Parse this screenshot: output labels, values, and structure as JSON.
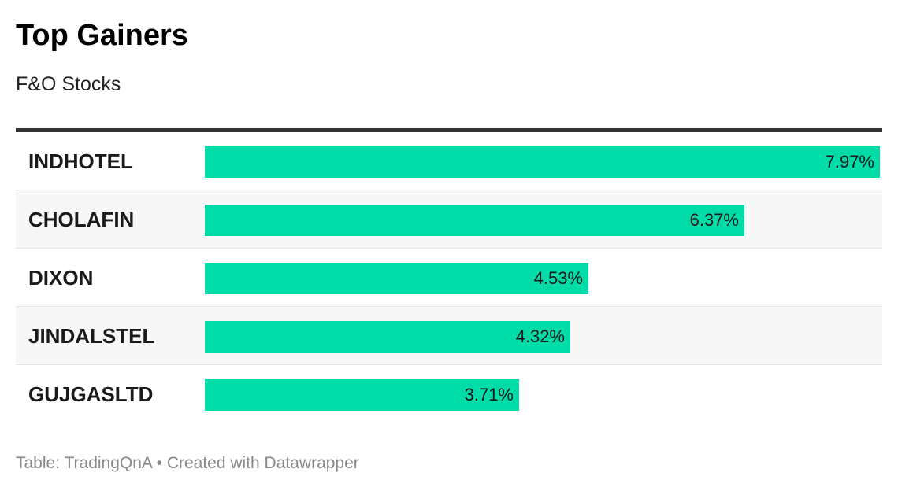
{
  "title": "Top Gainers",
  "subtitle": "F&O Stocks",
  "footer": {
    "source": "Table: TradingQnA",
    "separator": "•",
    "credit": "Created with Datawrapper"
  },
  "colors": {
    "bar": "#00dca8",
    "header_rule": "#333333",
    "alt_row": "#f7f7f7"
  },
  "chart_data": {
    "type": "bar",
    "orientation": "horizontal",
    "title": "Top Gainers",
    "subtitle": "F&O Stocks",
    "categories": [
      "INDHOTEL",
      "CHOLAFIN",
      "DIXON",
      "JINDALSTEL",
      "GUJGASLTD"
    ],
    "values": [
      7.97,
      6.37,
      4.53,
      4.32,
      3.71
    ],
    "value_labels": [
      "7.97%",
      "6.37%",
      "4.53%",
      "4.32%",
      "3.71%"
    ],
    "xlim": [
      0,
      8.0
    ],
    "unit": "%",
    "grid": false,
    "legend": "none"
  }
}
